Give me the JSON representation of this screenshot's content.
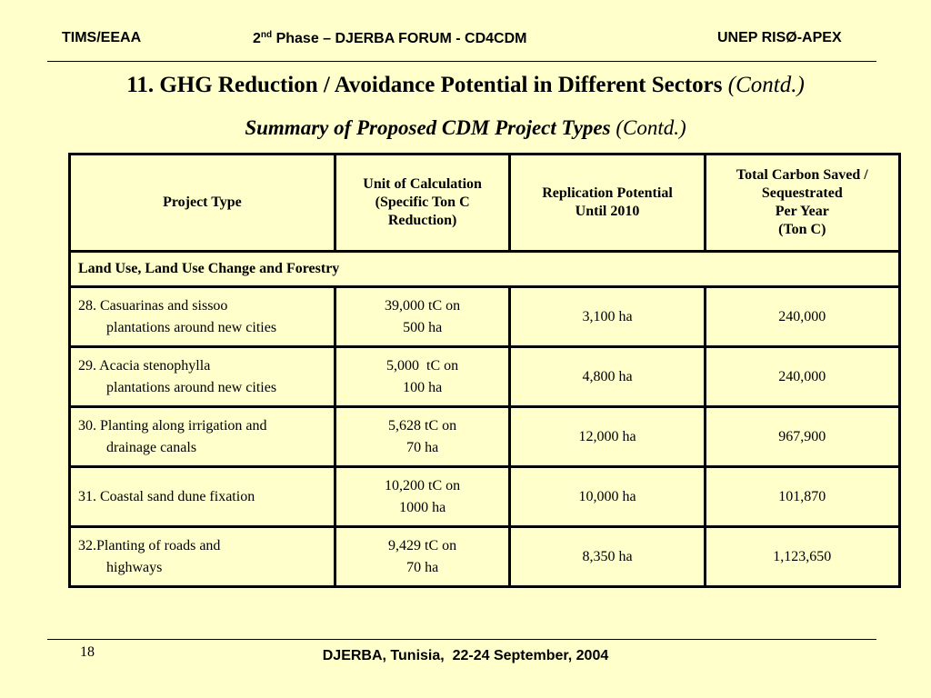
{
  "header": {
    "left": "TIMS/EEAA",
    "mid_prefix": "2",
    "mid_sup": "nd",
    "mid_rest": " Phase – DJERBA FORUM - CD4CDM",
    "right": "UNEP RISØ-APEX"
  },
  "title": {
    "main": "11. GHG Reduction / Avoidance Potential in Different Sectors",
    "contd": "(Contd.)"
  },
  "subtitle": {
    "main": "Summary of Proposed CDM Project Types",
    "contd": "(Contd.)"
  },
  "table": {
    "headers": {
      "project_type": "Project Type",
      "unit": [
        "Unit of Calculation",
        "(Specific Ton C",
        "Reduction)"
      ],
      "replication": [
        "Replication Potential",
        "Until 2010"
      ],
      "carbon": [
        "Total Carbon Saved /",
        "Sequestrated",
        "Per Year",
        "(Ton C)"
      ]
    },
    "section": "Land Use, Land Use Change and Forestry",
    "rows": [
      {
        "type": [
          "28. Casuarinas and sissoo",
          "plantations around new cities"
        ],
        "unit": [
          "39,000 tC on",
          "500 ha"
        ],
        "replication": "3,100 ha",
        "carbon": "240,000"
      },
      {
        "type": [
          "29. Acacia stenophylla",
          "plantations around new cities"
        ],
        "unit": [
          "5,000  tC on",
          "100 ha"
        ],
        "replication": "4,800 ha",
        "carbon": "240,000"
      },
      {
        "type": [
          "30. Planting along irrigation and",
          "drainage canals"
        ],
        "unit": [
          "5,628 tC on",
          "70 ha"
        ],
        "replication": "12,000 ha",
        "carbon": "967,900"
      },
      {
        "type": [
          "31. Coastal sand dune fixation",
          ""
        ],
        "unit": [
          "10,200 tC on",
          "1000 ha"
        ],
        "replication": "10,000 ha",
        "carbon": "101,870"
      },
      {
        "type": [
          "32.Planting of roads and",
          "highways"
        ],
        "unit": [
          "9,429 tC on",
          "70 ha"
        ],
        "replication": "8,350 ha",
        "carbon": "1,123,650"
      }
    ]
  },
  "footer": {
    "page_number": "18",
    "text": "DJERBA, Tunisia,  22-24 September, 2004"
  }
}
